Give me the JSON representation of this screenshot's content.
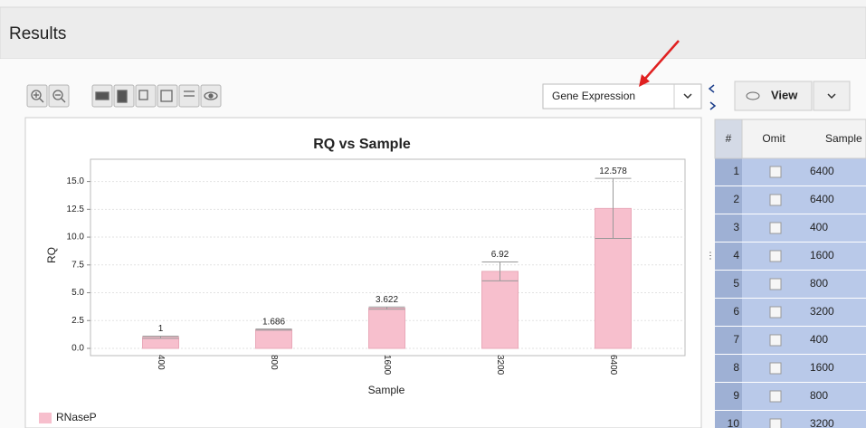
{
  "header": {
    "title": "Results"
  },
  "toolbar": {
    "dropdown": "Gene Expression",
    "view_button": "View"
  },
  "table": {
    "columns": [
      "#",
      "Omit",
      "Sample"
    ],
    "rows": [
      [
        "1",
        "6400"
      ],
      [
        "2",
        "6400"
      ],
      [
        "3",
        "400"
      ],
      [
        "4",
        "1600"
      ],
      [
        "5",
        "800"
      ],
      [
        "6",
        "3200"
      ],
      [
        "7",
        "400"
      ],
      [
        "8",
        "1600"
      ],
      [
        "9",
        "800"
      ],
      [
        "10",
        "3200"
      ]
    ]
  },
  "chart_data": {
    "type": "bar",
    "title": "RQ vs Sample",
    "x_label": "Sample",
    "y_label": "RQ",
    "categories": [
      "400",
      "800",
      "1600",
      "3200",
      "6400"
    ],
    "series": [
      {
        "name": "RNaseP",
        "color": "#f7bfcd",
        "values": [
          1,
          1.686,
          3.622,
          6.92,
          12.578
        ],
        "errors": [
          0.1,
          0.05,
          0.1,
          0.85,
          2.7
        ]
      }
    ],
    "ylim": [
      0,
      17
    ],
    "yticks": [
      {
        "value": 0,
        "label": "0.0"
      },
      2.5,
      {
        "value": 5,
        "label": "5.0"
      },
      7.5,
      {
        "value": 10,
        "label": "10.0"
      },
      12.5,
      {
        "value": 15,
        "label": "15.0"
      }
    ],
    "grid": true,
    "legend": "bottom-left"
  }
}
